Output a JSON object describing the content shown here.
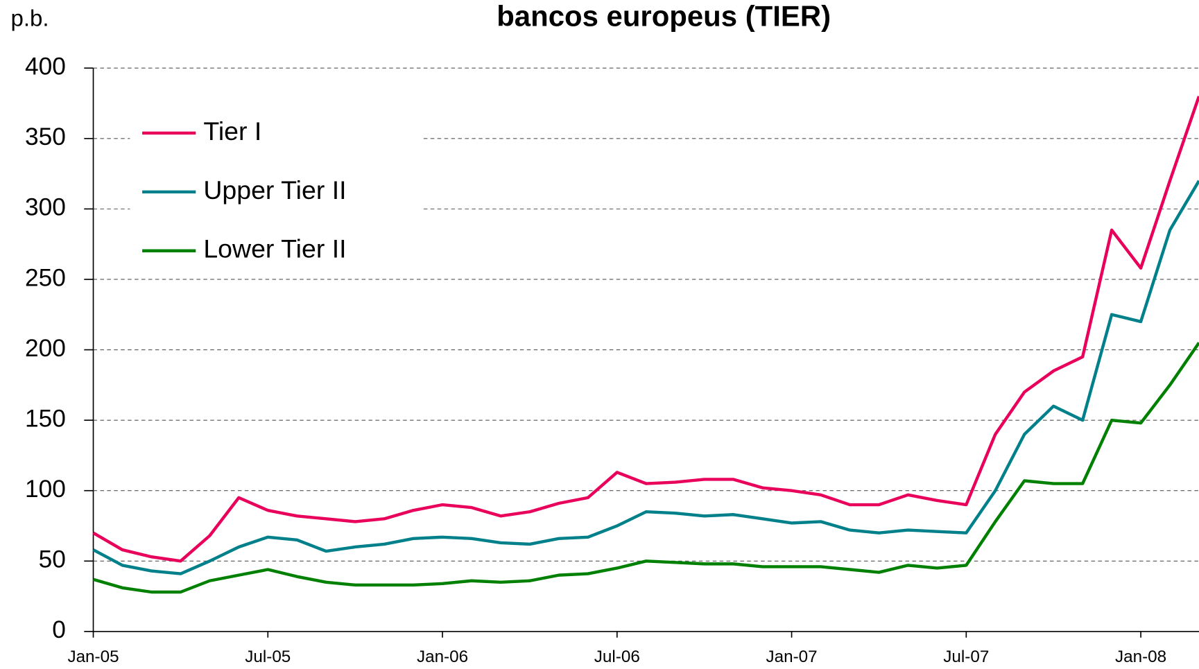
{
  "chart_data": {
    "type": "line",
    "title": "bancos europeus  (TIER)",
    "y_label": "p.b.",
    "categories": [
      "Jan-05",
      null,
      null,
      null,
      null,
      null,
      "Jul-05",
      null,
      null,
      null,
      null,
      null,
      "Jan-06",
      null,
      null,
      null,
      null,
      null,
      "Jul-06",
      null,
      null,
      null,
      null,
      null,
      "Jan-07",
      null,
      null,
      null,
      null,
      null,
      "Jul-07",
      null,
      null,
      null,
      null,
      null,
      "Jan-08",
      null,
      null
    ],
    "series": [
      {
        "name": "Tier I",
        "color": "#e8005a",
        "values": [
          70,
          58,
          53,
          50,
          68,
          95,
          86,
          82,
          80,
          78,
          80,
          86,
          90,
          88,
          82,
          85,
          91,
          95,
          113,
          105,
          106,
          108,
          108,
          102,
          100,
          97,
          90,
          90,
          97,
          93,
          90,
          140,
          170,
          185,
          195,
          285,
          258,
          320,
          380
        ]
      },
      {
        "name": "Upper Tier II",
        "color": "#00808a",
        "values": [
          58,
          47,
          43,
          41,
          50,
          60,
          67,
          65,
          57,
          60,
          62,
          66,
          67,
          66,
          63,
          62,
          66,
          67,
          75,
          85,
          84,
          82,
          83,
          80,
          77,
          78,
          72,
          70,
          72,
          71,
          70,
          100,
          140,
          160,
          150,
          225,
          220,
          285,
          320
        ]
      },
      {
        "name": "Lower Tier II",
        "color": "#008000",
        "values": [
          37,
          31,
          28,
          28,
          36,
          40,
          44,
          39,
          35,
          33,
          33,
          33,
          34,
          36,
          35,
          36,
          40,
          41,
          45,
          50,
          49,
          48,
          48,
          46,
          46,
          46,
          44,
          42,
          47,
          45,
          47,
          78,
          107,
          105,
          105,
          150,
          148,
          175,
          205
        ]
      }
    ],
    "ylim": [
      0,
      400
    ],
    "yticks": [
      0,
      50,
      100,
      150,
      200,
      250,
      300,
      350,
      400
    ],
    "grid": true,
    "legend": "top-left"
  }
}
